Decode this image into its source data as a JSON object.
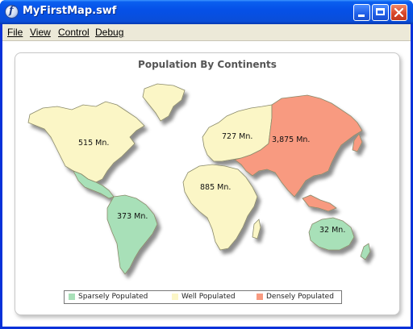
{
  "window": {
    "title": "MyFirstMap.swf"
  },
  "menu": [
    "File",
    "View",
    "Control",
    "Debug"
  ],
  "map": {
    "title": "Population By Continents",
    "regions": [
      {
        "name": "North America",
        "label": "515 Mn.",
        "category": "Well Populated"
      },
      {
        "name": "South America",
        "label": "373 Mn.",
        "category": "Sparsely Populated"
      },
      {
        "name": "Europe",
        "label": "727 Mn.",
        "category": "Well Populated"
      },
      {
        "name": "Africa",
        "label": "885 Mn.",
        "category": "Well Populated"
      },
      {
        "name": "Asia",
        "label": "3,875 Mn.",
        "category": "Densely Populated"
      },
      {
        "name": "Australia",
        "label": "32 Mn.",
        "category": "Sparsely Populated"
      }
    ],
    "legend": [
      {
        "label": "Sparsely Populated",
        "color": "#a8e0b8"
      },
      {
        "label": "Well Populated",
        "color": "#fbf6c6"
      },
      {
        "label": "Densely Populated",
        "color": "#f89a80"
      }
    ]
  }
}
